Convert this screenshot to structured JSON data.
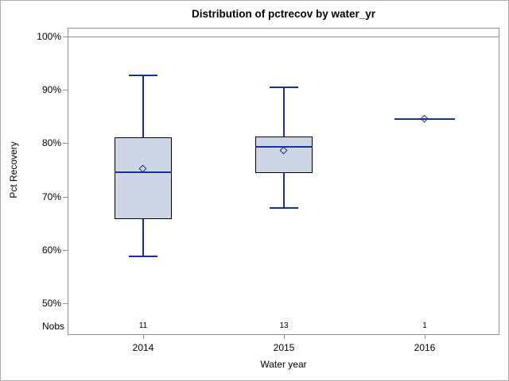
{
  "window": {
    "background": "#ffffff",
    "border_color": "#ababab"
  },
  "chart_data": {
    "type": "boxplot",
    "title": "Distribution of pctrecov by water_yr",
    "xlabel": "Water year",
    "ylabel": "Pct Recovery",
    "nobs_label": "Nobs",
    "legend_position": "none",
    "grid": false,
    "y_axis": {
      "unit": "percent",
      "tick_values": [
        100,
        90,
        80,
        70,
        60,
        50
      ],
      "tick_labels": [
        "100%",
        "90%",
        "80%",
        "70%",
        "60%",
        "50%"
      ],
      "range_shown": [
        44,
        102
      ]
    },
    "reference_line_value": 100,
    "categories": [
      "2014",
      "2015",
      "2016"
    ],
    "groups": [
      {
        "year": "2014",
        "nobs": "11",
        "n": 11,
        "whisker_low": 58.7,
        "q1": 65.8,
        "median": 74.5,
        "mean": 75.2,
        "q3": 81.1,
        "whisker_high": 92.8
      },
      {
        "year": "2015",
        "nobs": "13",
        "n": 13,
        "whisker_low": 67.8,
        "q1": 74.4,
        "median": 79.3,
        "mean": 78.6,
        "q3": 81.2,
        "whisker_high": 90.5
      },
      {
        "year": "2016",
        "nobs": "1",
        "n": 1,
        "value": 84.5,
        "median": 84.5,
        "mean": 84.5
      }
    ],
    "colors": {
      "box_fill": "#cdd6e4",
      "box_border": "#000000",
      "line": "#16309c",
      "axis": "#8f8f8f",
      "text": "#000000"
    }
  }
}
